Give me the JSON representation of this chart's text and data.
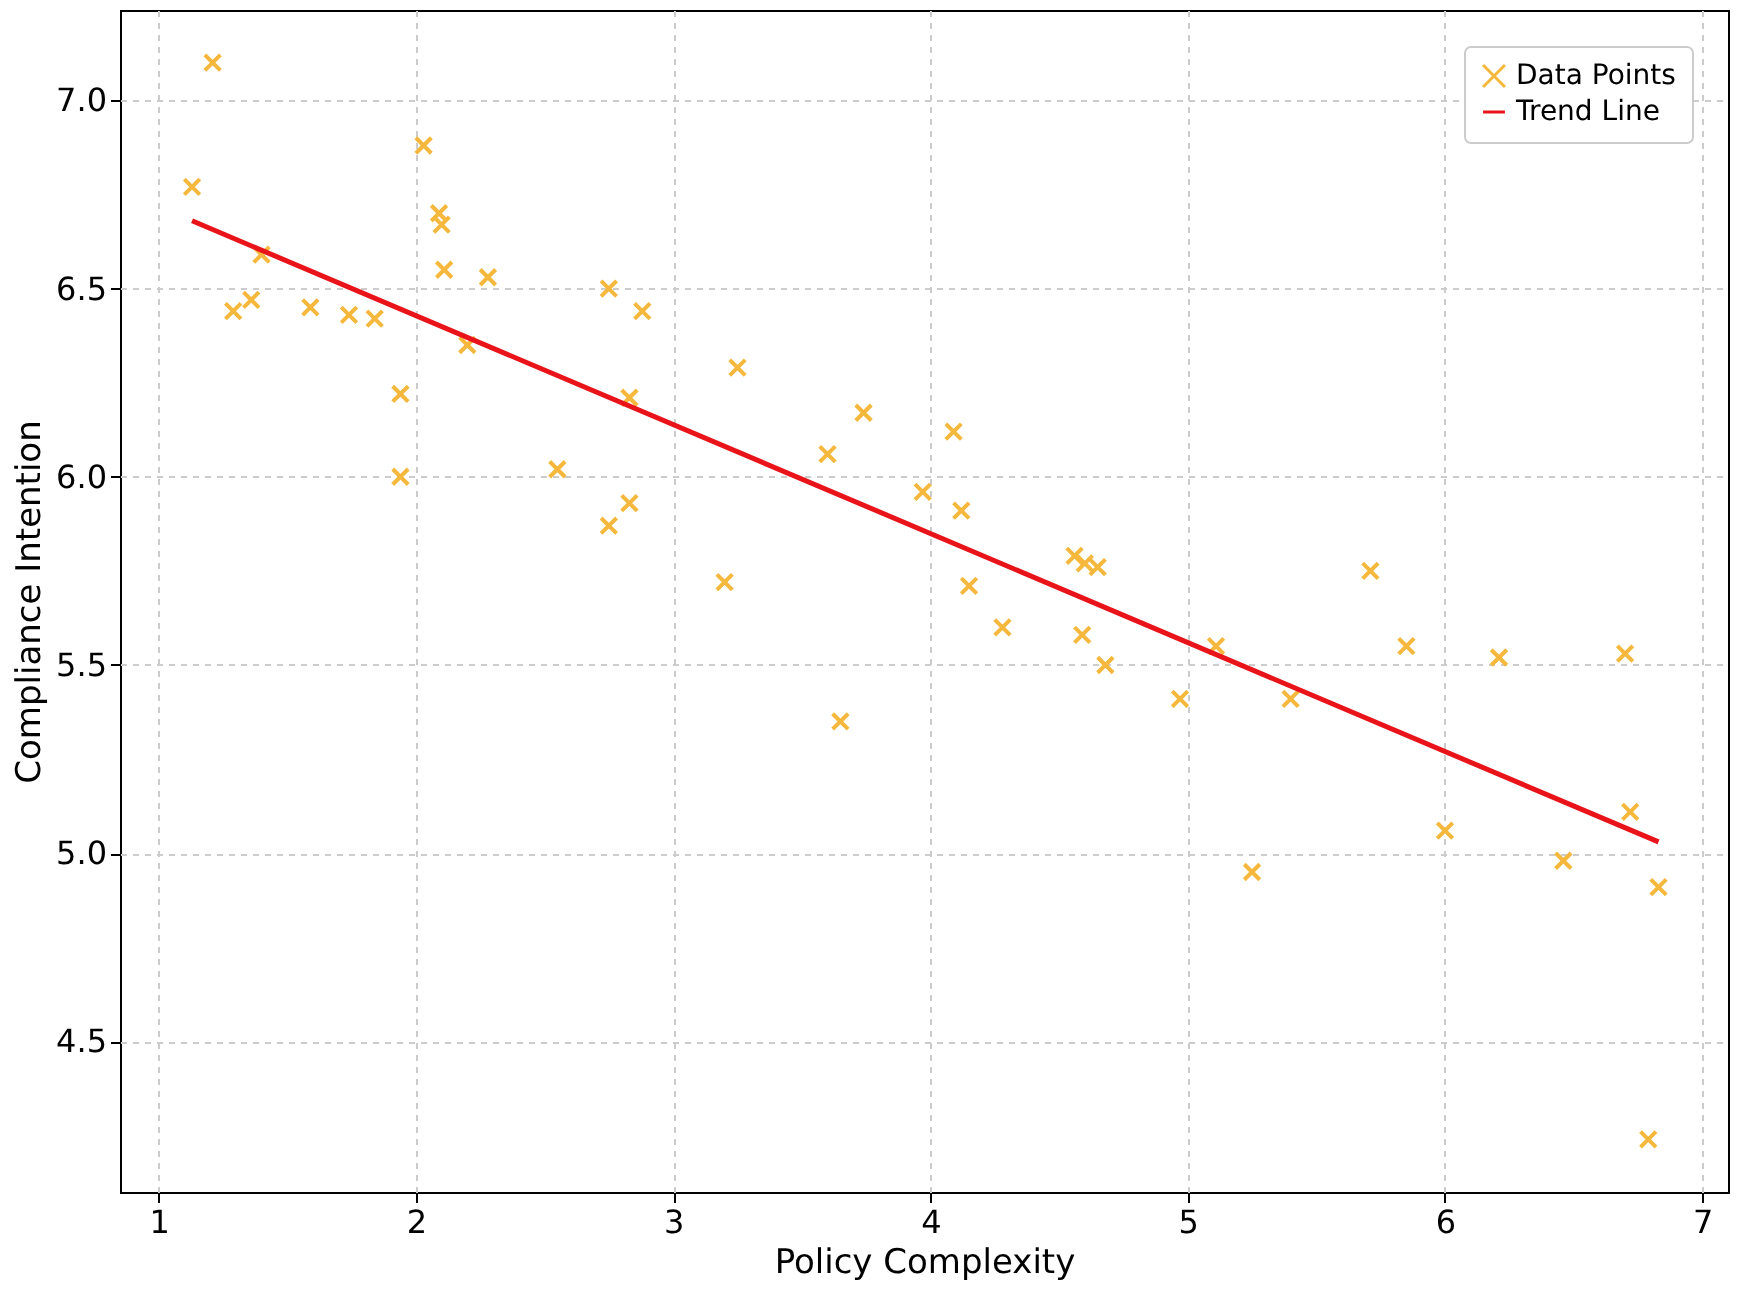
{
  "chart_data": {
    "type": "scatter",
    "xlabel": "Policy Complexity",
    "ylabel": "Compliance Intention",
    "xlim": [
      0.85,
      7.1
    ],
    "xticks": [
      1,
      2,
      3,
      4,
      5,
      6,
      7
    ],
    "ylim": [
      4.1,
      7.24
    ],
    "yticks": [
      4.5,
      {
        "value": 5,
        "label": "5.0"
      },
      5.5,
      {
        "value": 6,
        "label": "6.0"
      },
      6.5,
      {
        "value": 7,
        "label": "7.0"
      }
    ],
    "grid": true,
    "legend": "top right",
    "series": [
      {
        "name": "Data Points",
        "marker": "cross",
        "color": "#f5b83d",
        "x": [
          1.13,
          1.21,
          1.29,
          1.36,
          1.4,
          1.59,
          1.74,
          1.84,
          1.94,
          1.94,
          2.03,
          2.09,
          2.1,
          2.11,
          2.2,
          2.28,
          2.55,
          2.75,
          2.75,
          2.83,
          2.83,
          2.88,
          3.2,
          3.25,
          3.6,
          3.65,
          3.74,
          3.97,
          4.09,
          4.12,
          4.15,
          4.28,
          4.56,
          4.6,
          4.65,
          4.59,
          4.68,
          4.97,
          5.11,
          5.25,
          5.4,
          5.71,
          5.85,
          6.0,
          6.21,
          6.46,
          6.7,
          6.72,
          6.83,
          6.79
        ],
        "values": [
          6.77,
          7.1,
          6.44,
          6.47,
          6.59,
          6.45,
          6.43,
          6.42,
          6.22,
          6.0,
          6.88,
          6.7,
          6.67,
          6.55,
          6.35,
          6.53,
          6.02,
          6.5,
          5.87,
          6.21,
          5.93,
          6.44,
          5.72,
          6.29,
          6.06,
          5.35,
          6.17,
          5.96,
          6.12,
          5.91,
          5.71,
          5.6,
          5.79,
          5.77,
          5.76,
          5.58,
          5.5,
          5.41,
          5.55,
          4.95,
          5.41,
          5.75,
          5.55,
          5.06,
          5.52,
          4.98,
          5.53,
          5.11,
          4.91,
          4.24
        ]
      },
      {
        "name": "Trend Line",
        "type": "line",
        "line_style": "solid",
        "color": "#e8141a",
        "x": [
          1.13,
          6.83
        ],
        "values": [
          6.68,
          5.03
        ]
      }
    ]
  }
}
